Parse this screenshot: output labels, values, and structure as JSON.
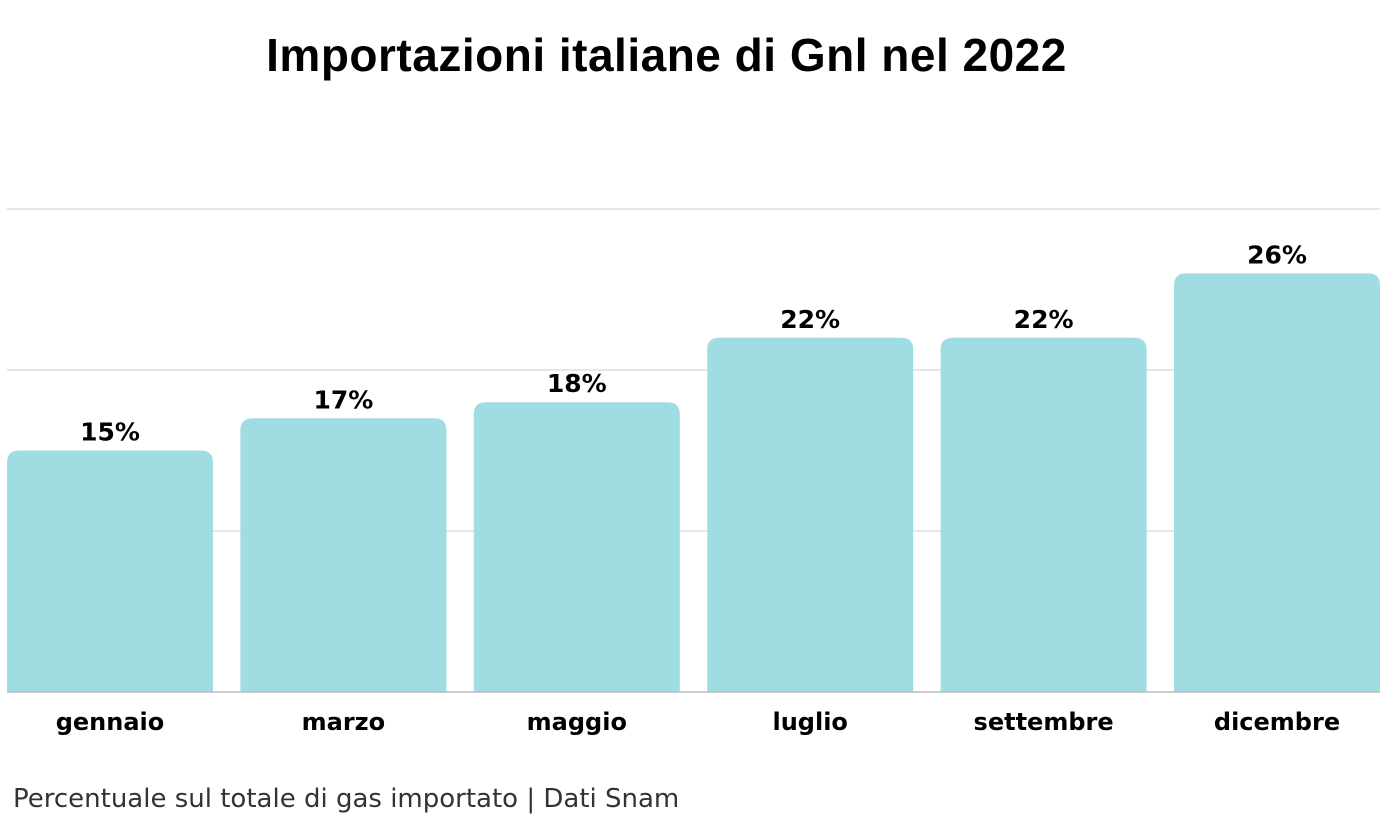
{
  "chart_data": {
    "type": "bar",
    "title": "Importazioni italiane di Gnl nel 2022",
    "footer": "Percentuale sul totale di gas importato | Dati Snam",
    "categories": [
      "gennaio",
      "marzo",
      "maggio",
      "luglio",
      "settembre",
      "dicembre"
    ],
    "values": [
      15,
      17,
      18,
      22,
      22,
      26
    ],
    "value_labels": [
      "15%",
      "17%",
      "18%",
      "22%",
      "22%",
      "26%"
    ],
    "unit": "%",
    "ylim": [
      0,
      30
    ],
    "gridlines": [
      10,
      20,
      30
    ],
    "grid": true,
    "xlabel": "",
    "ylabel": "",
    "bar_color": "#9fdde3",
    "grid_color": "#dddddd",
    "baseline_color": "#bbbbbb"
  }
}
